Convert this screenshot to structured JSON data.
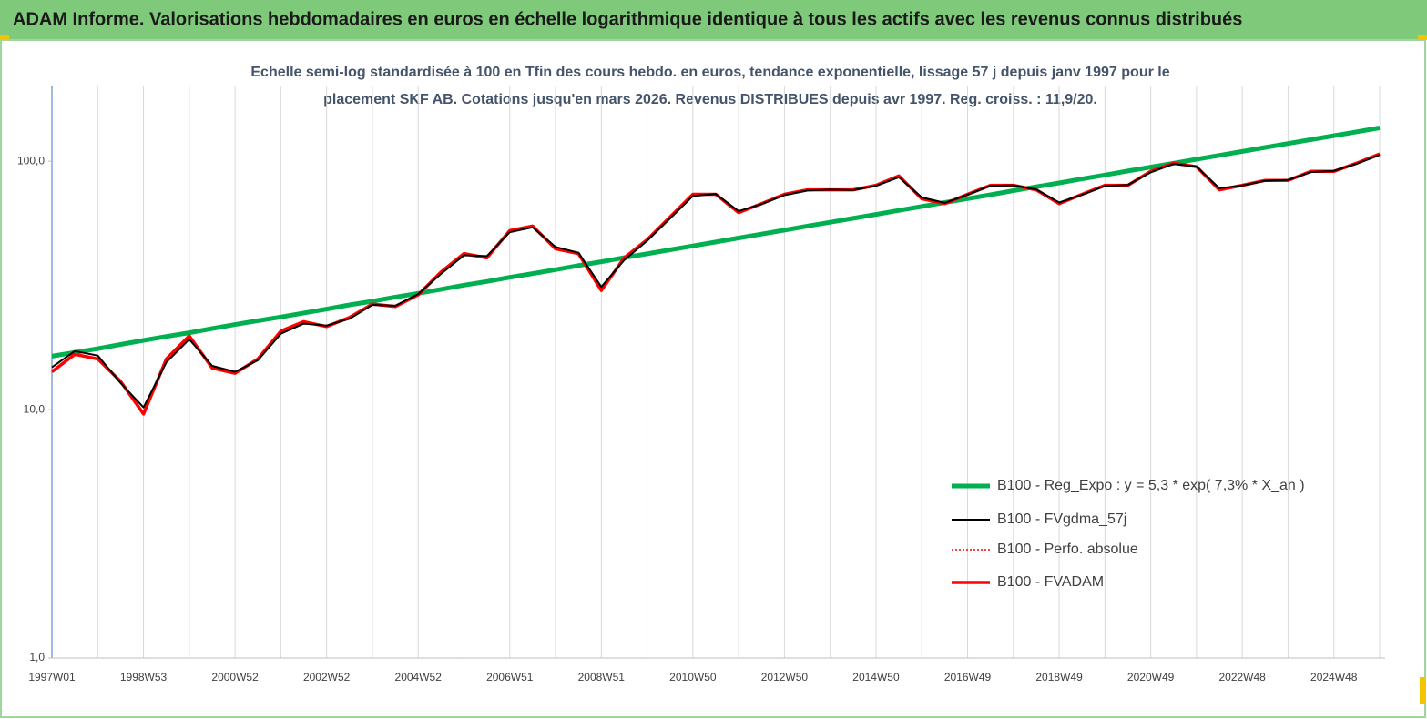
{
  "chart_data": {
    "type": "line",
    "title": "ADAM Informe. Valorisations hebdomadaires en euros en échelle logarithmique identique à tous les actifs avec les revenus connus distribués",
    "subtitle": [
      "Echelle semi-log standardisée à 100 en Tfin des cours hebdo. en euros, tendance exponentielle, lissage 57 j depuis janv 1997 pour le",
      "placement SKF AB. Cotations jusqu'en mars 2026. Revenus DISTRIBUES depuis avr 1997. Reg. croiss. : 11,9/20."
    ],
    "categories": [
      "1997W01",
      null,
      null,
      null,
      "1998W53",
      null,
      null,
      null,
      "2000W52",
      null,
      null,
      null,
      "2002W52",
      null,
      null,
      null,
      "2004W52",
      null,
      null,
      null,
      "2006W51",
      null,
      null,
      null,
      "2008W51",
      null,
      null,
      null,
      "2010W50",
      null,
      null,
      null,
      "2012W50",
      null,
      null,
      null,
      "2014W50",
      null,
      null,
      null,
      "2016W49",
      null,
      null,
      null,
      "2018W49",
      null,
      null,
      null,
      "2020W49",
      null,
      null,
      null,
      "2022W48",
      null,
      null,
      null,
      "2024W48",
      null,
      null
    ],
    "log_scale": true,
    "ylim": [
      1,
      200
    ],
    "yticks": [
      {
        "value": 1,
        "label": "1,0"
      },
      {
        "value": 10,
        "label": "10,0"
      },
      {
        "value": 100,
        "label": "100,0"
      }
    ],
    "grid": "x",
    "legend": "lower right",
    "series": [
      {
        "name": "B100 - Reg_Expo : y = 5,3 *  exp( 7,3% *  X_an )",
        "color": "#00b050",
        "width": 5,
        "style": "solid",
        "values": [
          16.4,
          17.0,
          17.6,
          18.3,
          19.0,
          19.7,
          20.4,
          21.2,
          22.0,
          22.8,
          23.6,
          24.5,
          25.4,
          26.4,
          27.3,
          28.4,
          29.4,
          30.5,
          31.7,
          32.8,
          34.1,
          35.3,
          36.6,
          38.0,
          39.4,
          40.9,
          42.4,
          44.0,
          45.6,
          47.3,
          49.1,
          50.9,
          52.8,
          54.8,
          56.8,
          58.9,
          61.1,
          63.4,
          65.7,
          68.2,
          70.7,
          73.3,
          76.1,
          78.9,
          81.8,
          84.9,
          88.0,
          91.3,
          94.7,
          98.2,
          101.8,
          105.6,
          109.5,
          113.6,
          117.8,
          122.2,
          126.7,
          131.4,
          136.3
        ]
      },
      {
        "name": "B100 - FVgdma_57j",
        "color": "#000000",
        "width": 2,
        "style": "solid",
        "values": [
          14.8,
          17.2,
          16.5,
          12.8,
          10.2,
          15.5,
          19.2,
          15.0,
          14.2,
          15.8,
          20.2,
          22.2,
          21.8,
          23.2,
          26.4,
          26.2,
          29.2,
          35.2,
          41.8,
          41.5,
          51.8,
          54.2,
          45.2,
          42.8,
          31.2,
          40.0,
          47.8,
          58.8,
          72.5,
          73.8,
          63.0,
          67.2,
          73.0,
          76.2,
          76.8,
          76.5,
          79.6,
          86.2,
          71.5,
          68.0,
          73.2,
          79.6,
          80.0,
          77.0,
          68.2,
          73.2,
          79.4,
          80.3,
          90.2,
          97.5,
          95.2,
          77.8,
          79.8,
          83.4,
          84.0,
          90.4,
          91.5,
          97.6,
          106.0
        ]
      },
      {
        "name": "B100 - Perfo. absolue",
        "color": "#ff0000",
        "width": 1.5,
        "style": "dotted",
        "values": [
          14.2,
          16.7,
          16.0,
          13.0,
          9.6,
          16.0,
          19.8,
          14.7,
          14.0,
          16.0,
          20.7,
          22.6,
          21.6,
          23.5,
          26.6,
          26.0,
          29.0,
          35.8,
          42.5,
          40.8,
          52.6,
          54.8,
          44.4,
          42.5,
          30.2,
          40.8,
          48.3,
          59.6,
          73.6,
          73.6,
          62.1,
          67.5,
          73.6,
          76.7,
          76.7,
          76.7,
          80.0,
          87.3,
          70.6,
          67.5,
          73.6,
          80.0,
          80.0,
          76.7,
          67.5,
          73.6,
          80.0,
          80.0,
          91.0,
          98.3,
          95.0,
          76.7,
          80.0,
          83.7,
          83.7,
          91.0,
          91.0,
          98.3,
          107.0
        ]
      },
      {
        "name": "B100 - FVADAM",
        "color": "#ff0000",
        "width": 3.5,
        "style": "solid",
        "values": [
          14.2,
          16.7,
          16.0,
          13.0,
          9.6,
          16.0,
          19.8,
          14.7,
          14.0,
          16.0,
          20.7,
          22.6,
          21.6,
          23.5,
          26.6,
          26.0,
          29.0,
          35.8,
          42.5,
          40.8,
          52.6,
          54.8,
          44.4,
          42.5,
          30.2,
          40.8,
          48.3,
          59.6,
          73.6,
          73.6,
          62.1,
          67.5,
          73.6,
          76.7,
          76.7,
          76.7,
          80.0,
          87.3,
          70.6,
          67.5,
          73.6,
          80.0,
          80.0,
          76.7,
          67.5,
          73.6,
          80.0,
          80.0,
          91.0,
          98.3,
          95.0,
          76.7,
          80.0,
          83.7,
          83.7,
          91.0,
          91.0,
          98.3,
          107.0
        ]
      }
    ]
  }
}
